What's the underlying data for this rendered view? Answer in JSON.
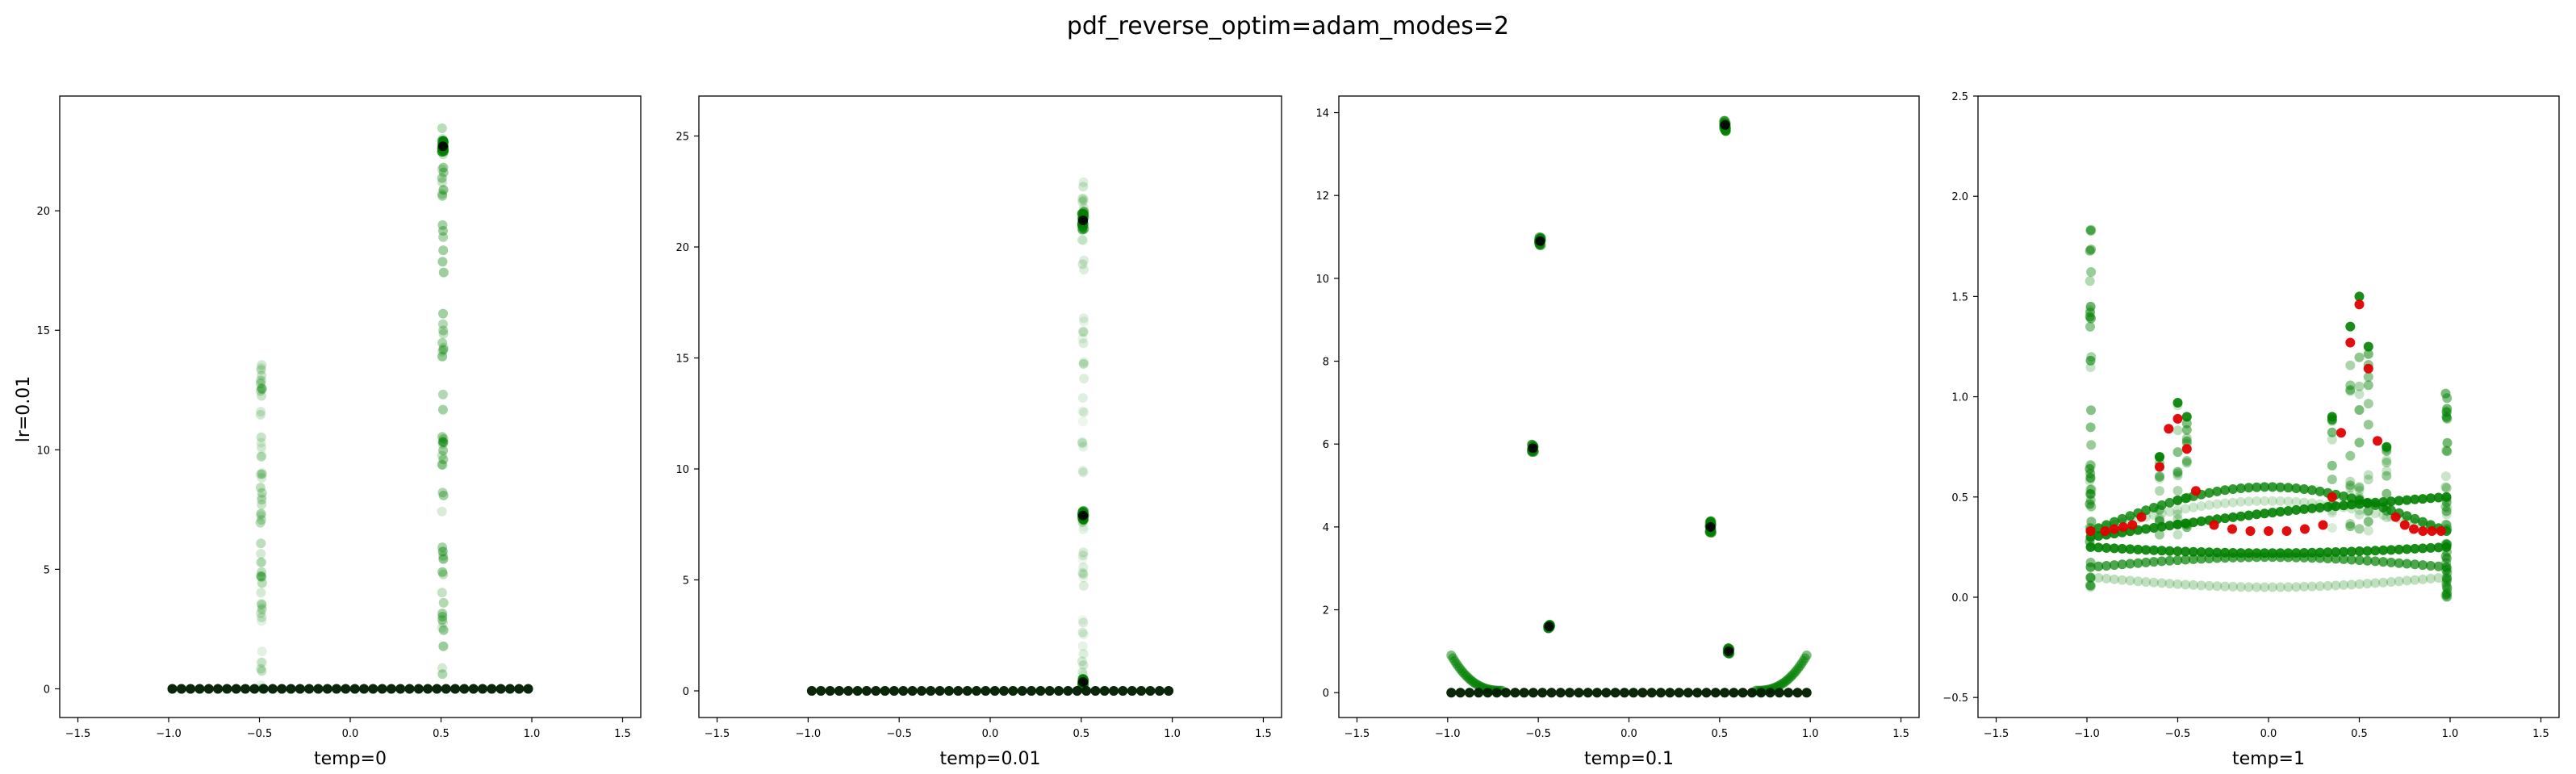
{
  "figure": {
    "suptitle": "pdf_reverse_optim=adam_modes=2",
    "row_label": "lr=0.01"
  },
  "colors": {
    "points": "#008000",
    "final": "#000000",
    "highlight": "#e00000"
  },
  "chart_data": [
    {
      "type": "scatter",
      "xlabel": "temp=0",
      "xlim": [
        -1.6,
        1.6
      ],
      "ylim": [
        -1.2,
        24.8
      ],
      "xticks": [
        -1.5,
        -1.0,
        -0.5,
        0.0,
        0.5,
        1.0,
        1.5
      ],
      "xtick_labels": [
        "−1.5",
        "−1.0",
        "−0.5",
        "0.0",
        "0.5",
        "1.0",
        "1.5"
      ],
      "yticks": [
        0,
        5,
        10,
        15,
        20
      ],
      "ytick_labels": [
        "0",
        "5",
        "10",
        "15",
        "20"
      ],
      "baseline": {
        "x_start": -0.98,
        "x_end": 0.98,
        "n": 40,
        "y": 0.0
      },
      "trails": [
        {
          "x": -0.49,
          "y_min": 0.0,
          "y_max": 14.2,
          "opacity": 0.18
        },
        {
          "x": 0.51,
          "y_min": 0.0,
          "y_max": 23.6,
          "opacity": 0.3
        }
      ],
      "clusters": [
        {
          "x": 0.51,
          "y": 22.7,
          "spread": 0.5
        }
      ],
      "highlights": []
    },
    {
      "type": "scatter",
      "xlabel": "temp=0.01",
      "xlim": [
        -1.6,
        1.6
      ],
      "ylim": [
        -1.2,
        26.8
      ],
      "xticks": [
        -1.5,
        -1.0,
        -0.5,
        0.0,
        0.5,
        1.0,
        1.5
      ],
      "xtick_labels": [
        "−1.5",
        "−1.0",
        "−0.5",
        "0.0",
        "0.5",
        "1.0",
        "1.5"
      ],
      "yticks": [
        0,
        5,
        10,
        15,
        20,
        25
      ],
      "ytick_labels": [
        "0",
        "5",
        "10",
        "15",
        "20",
        "25"
      ],
      "baseline": {
        "x_start": -0.98,
        "x_end": 0.98,
        "n": 40,
        "y": 0.0
      },
      "trails": [
        {
          "x": 0.51,
          "y_min": 0.0,
          "y_max": 25.5,
          "opacity": 0.12
        }
      ],
      "clusters": [
        {
          "x": 0.51,
          "y": 21.2,
          "spread": 0.9
        },
        {
          "x": 0.51,
          "y": 7.9,
          "spread": 0.4
        },
        {
          "x": 0.51,
          "y": 0.4,
          "spread": 0.3
        }
      ],
      "highlights": []
    },
    {
      "type": "scatter",
      "xlabel": "temp=0.1",
      "xlim": [
        -1.6,
        1.6
      ],
      "ylim": [
        -0.6,
        14.4
      ],
      "xticks": [
        -1.5,
        -1.0,
        -0.5,
        0.0,
        0.5,
        1.0,
        1.5
      ],
      "xtick_labels": [
        "−1.5",
        "−1.0",
        "−0.5",
        "0.0",
        "0.5",
        "1.0",
        "1.5"
      ],
      "yticks": [
        0,
        2,
        4,
        6,
        8,
        10,
        12,
        14
      ],
      "ytick_labels": [
        "0",
        "2",
        "4",
        "6",
        "8",
        "10",
        "12",
        "14"
      ],
      "baseline": {
        "x_start": -0.98,
        "x_end": 0.98,
        "n": 40,
        "y": 0.0
      },
      "edge_curves": [
        {
          "x_from": -0.98,
          "x_to": -0.7,
          "y_from": 0.9,
          "y_to": 0.05
        },
        {
          "x_from": 0.98,
          "x_to": 0.7,
          "y_from": 0.9,
          "y_to": 0.05
        }
      ],
      "trails": [],
      "clusters": [
        {
          "x": -0.49,
          "y": 10.9,
          "spread": 0.2
        },
        {
          "x": -0.53,
          "y": 5.9,
          "spread": 0.2
        },
        {
          "x": -0.44,
          "y": 1.6,
          "spread": 0.1
        },
        {
          "x": 0.53,
          "y": 13.7,
          "spread": 0.3
        },
        {
          "x": 0.45,
          "y": 4.0,
          "spread": 0.3
        },
        {
          "x": 0.55,
          "y": 1.0,
          "spread": 0.15
        }
      ],
      "highlights": []
    },
    {
      "type": "scatter",
      "xlabel": "temp=1",
      "xlim": [
        -1.6,
        1.6
      ],
      "ylim": [
        -0.6,
        2.5
      ],
      "xticks": [
        -1.5,
        -1.0,
        -0.5,
        0.0,
        0.5,
        1.0,
        1.5
      ],
      "xtick_labels": [
        "−1.5",
        "−1.0",
        "−0.5",
        "0.0",
        "0.5",
        "1.0",
        "1.5"
      ],
      "yticks": [
        -0.5,
        0.0,
        0.5,
        1.0,
        1.5,
        2.0,
        2.5
      ],
      "ytick_labels": [
        "−0.5",
        "0.0",
        "0.5",
        "1.0",
        "1.5",
        "2.0",
        "2.5"
      ],
      "bands": [
        {
          "y_left": 0.33,
          "y_mid": 0.55,
          "y_right": 0.33,
          "shape": "arch",
          "opacity": 0.8
        },
        {
          "y_left": 0.3,
          "y_mid": 0.42,
          "y_right": 0.5,
          "shape": "rise",
          "opacity": 0.9
        },
        {
          "y_left": 0.25,
          "y_mid": 0.22,
          "y_right": 0.25,
          "shape": "arch",
          "opacity": 0.9
        },
        {
          "y_left": 0.15,
          "y_mid": 0.2,
          "y_right": 0.15,
          "shape": "arch",
          "opacity": 0.7
        },
        {
          "y_left": 0.1,
          "y_mid": 0.05,
          "y_right": 0.1,
          "shape": "arch",
          "opacity": 0.25
        },
        {
          "y_left": 0.33,
          "y_mid": 0.48,
          "y_right": 0.33,
          "shape": "arch",
          "opacity": 0.2
        }
      ],
      "edge_columns": [
        {
          "x": -0.98,
          "y_min": 0.05,
          "y_max": 1.9
        },
        {
          "x": 0.98,
          "y_min": 0.0,
          "y_max": 1.05
        }
      ],
      "spikes": [
        {
          "x": -0.6,
          "y_max": 0.7
        },
        {
          "x": -0.5,
          "y_max": 0.97
        },
        {
          "x": -0.45,
          "y_max": 0.9
        },
        {
          "x": 0.35,
          "y_max": 0.9
        },
        {
          "x": 0.45,
          "y_max": 1.35
        },
        {
          "x": 0.5,
          "y_max": 1.5
        },
        {
          "x": 0.55,
          "y_max": 1.25
        },
        {
          "x": 0.65,
          "y_max": 0.75
        }
      ],
      "highlights": [
        {
          "x": -0.98,
          "y": 0.33
        },
        {
          "x": -0.9,
          "y": 0.33
        },
        {
          "x": -0.85,
          "y": 0.34
        },
        {
          "x": -0.8,
          "y": 0.35
        },
        {
          "x": -0.75,
          "y": 0.36
        },
        {
          "x": -0.7,
          "y": 0.4
        },
        {
          "x": -0.6,
          "y": 0.65
        },
        {
          "x": -0.55,
          "y": 0.84
        },
        {
          "x": -0.5,
          "y": 0.89
        },
        {
          "x": -0.45,
          "y": 0.74
        },
        {
          "x": -0.4,
          "y": 0.53
        },
        {
          "x": -0.3,
          "y": 0.36
        },
        {
          "x": -0.2,
          "y": 0.34
        },
        {
          "x": -0.1,
          "y": 0.33
        },
        {
          "x": 0.0,
          "y": 0.33
        },
        {
          "x": 0.1,
          "y": 0.33
        },
        {
          "x": 0.2,
          "y": 0.34
        },
        {
          "x": 0.3,
          "y": 0.36
        },
        {
          "x": 0.35,
          "y": 0.5
        },
        {
          "x": 0.4,
          "y": 0.82
        },
        {
          "x": 0.45,
          "y": 1.27
        },
        {
          "x": 0.5,
          "y": 1.46
        },
        {
          "x": 0.55,
          "y": 1.14
        },
        {
          "x": 0.6,
          "y": 0.78
        },
        {
          "x": 0.7,
          "y": 0.4
        },
        {
          "x": 0.75,
          "y": 0.36
        },
        {
          "x": 0.8,
          "y": 0.34
        },
        {
          "x": 0.85,
          "y": 0.33
        },
        {
          "x": 0.9,
          "y": 0.33
        },
        {
          "x": 0.95,
          "y": 0.33
        }
      ]
    }
  ]
}
